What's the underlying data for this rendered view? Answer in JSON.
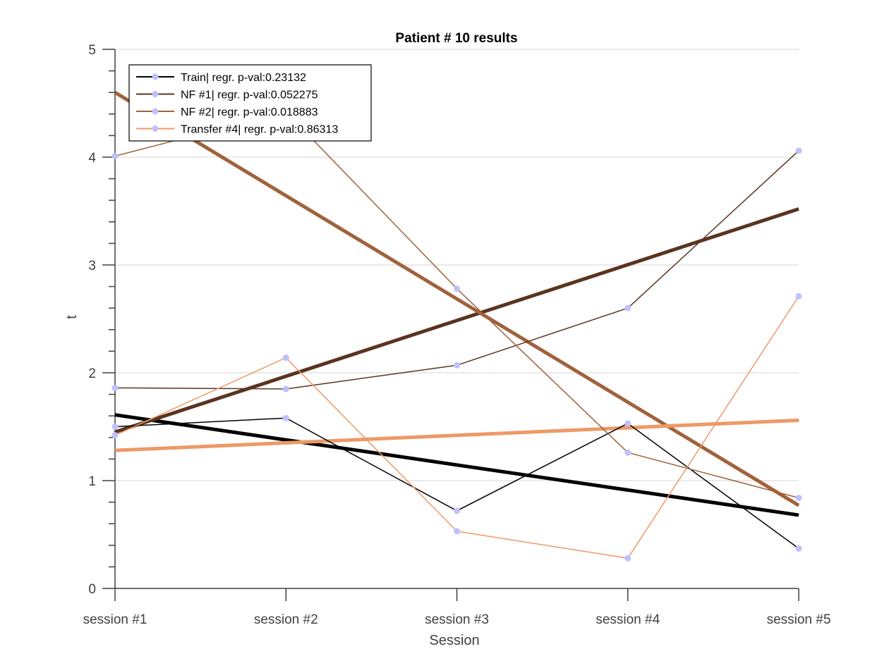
{
  "chart_data": {
    "type": "line",
    "title": "Patient # 10  results",
    "xlabel": "Session",
    "ylabel": "t",
    "categories": [
      "session #1",
      "session #2",
      "session #3",
      "session #4",
      "session #5"
    ],
    "ylim": [
      0,
      5
    ],
    "yticks": [
      "0",
      "1",
      "2",
      "3",
      "4",
      "5"
    ],
    "grid": "horizontal",
    "legend_position": "top-left",
    "marker_color": "#c0c0ff",
    "series": [
      {
        "name": "Train| regr. p-val:0.23132",
        "color": "#000000",
        "values": [
          1.5,
          1.58,
          0.72,
          1.53,
          0.37
        ],
        "regression": [
          1.61,
          0.68
        ]
      },
      {
        "name": "NF #1| regr. p-val:0.052275",
        "color": "#5a3421",
        "values": [
          1.86,
          1.85,
          2.07,
          2.6,
          4.06
        ],
        "regression": [
          1.45,
          3.52
        ]
      },
      {
        "name": "NF #2| regr. p-val:0.018883",
        "color": "#a0623c",
        "values": [
          4.01,
          4.42,
          2.78,
          1.26,
          0.84
        ],
        "regression": [
          4.6,
          0.77
        ]
      },
      {
        "name": "Transfer #4| regr. p-val:0.86313",
        "color": "#ee9966",
        "values": [
          1.42,
          2.14,
          0.53,
          0.28,
          2.71
        ],
        "regression": [
          1.28,
          1.56
        ]
      }
    ]
  }
}
